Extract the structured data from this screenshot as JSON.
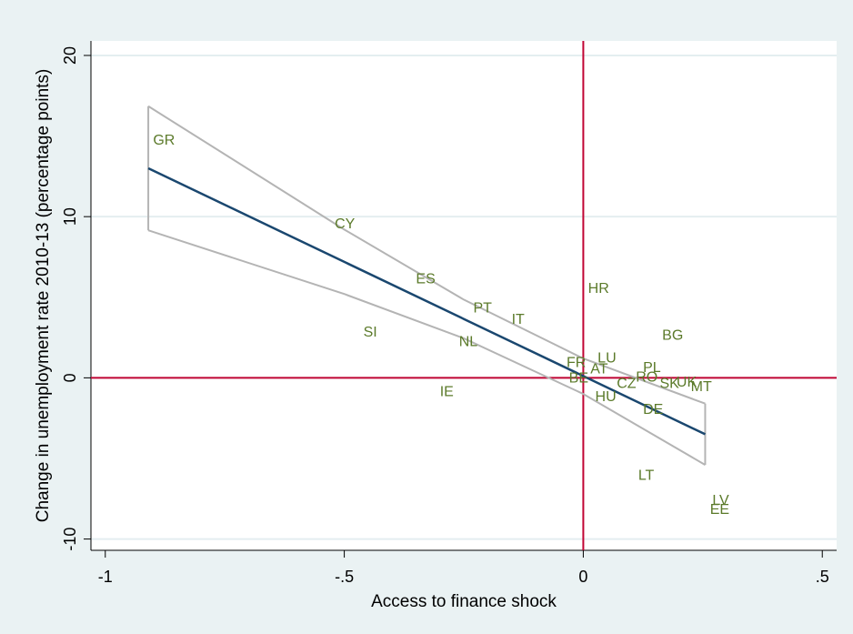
{
  "chart_data": {
    "type": "scatter",
    "xlabel": "Access to finance shock",
    "ylabel": "Change in unemployment rate 2010-13 (percentage points)",
    "xlim": [
      -1.03,
      0.53
    ],
    "ylim": [
      -10.7,
      20.9
    ],
    "xticks": [
      -1,
      {
        "value": -0.5,
        "label": "-.5"
      },
      0,
      {
        "value": 0.5,
        "label": ".5"
      }
    ],
    "yticks": [
      -10,
      0,
      10,
      20
    ],
    "grid": true,
    "reference_lines": {
      "x": 0,
      "y": 0,
      "color": "#c10534"
    },
    "points": {
      "color": "#5b7a2a",
      "labels": [
        "GR",
        "CY",
        "ES",
        "PT",
        "IT",
        "SI",
        "NL",
        "IE",
        "HR",
        "FR",
        "BE",
        "AT",
        "LU",
        "HU",
        "CZ",
        "PL",
        "RO",
        "SK",
        "UK",
        "MT",
        "BG",
        "DE",
        "LT",
        "LV",
        "EE"
      ],
      "x": [
        -0.9,
        -0.52,
        -0.35,
        -0.23,
        -0.15,
        -0.46,
        -0.26,
        -0.3,
        0.01,
        -0.035,
        -0.03,
        0.015,
        0.03,
        0.025,
        0.07,
        0.125,
        0.11,
        0.16,
        0.195,
        0.225,
        0.165,
        0.125,
        0.115,
        0.27,
        0.265
      ],
      "y": [
        14.7,
        9.5,
        6.1,
        4.3,
        3.6,
        2.8,
        2.2,
        -0.9,
        5.5,
        0.9,
        -0.05,
        0.5,
        1.2,
        -1.2,
        -0.4,
        0.6,
        0.0,
        -0.4,
        -0.3,
        -0.6,
        2.6,
        -2.0,
        -6.1,
        -7.65,
        -8.2
      ]
    },
    "fit": {
      "color": "#1a476f",
      "x": [
        -0.91,
        0.255
      ],
      "y": [
        13.0,
        -3.5
      ]
    },
    "ci": {
      "color": "#b4b4b4",
      "x": [
        -0.91,
        -0.5,
        -0.25,
        0,
        0.255
      ],
      "upper": [
        16.85,
        9.2,
        4.85,
        1.2,
        -1.6
      ],
      "lower": [
        9.15,
        5.2,
        2.45,
        -1.0,
        -5.4
      ]
    }
  }
}
